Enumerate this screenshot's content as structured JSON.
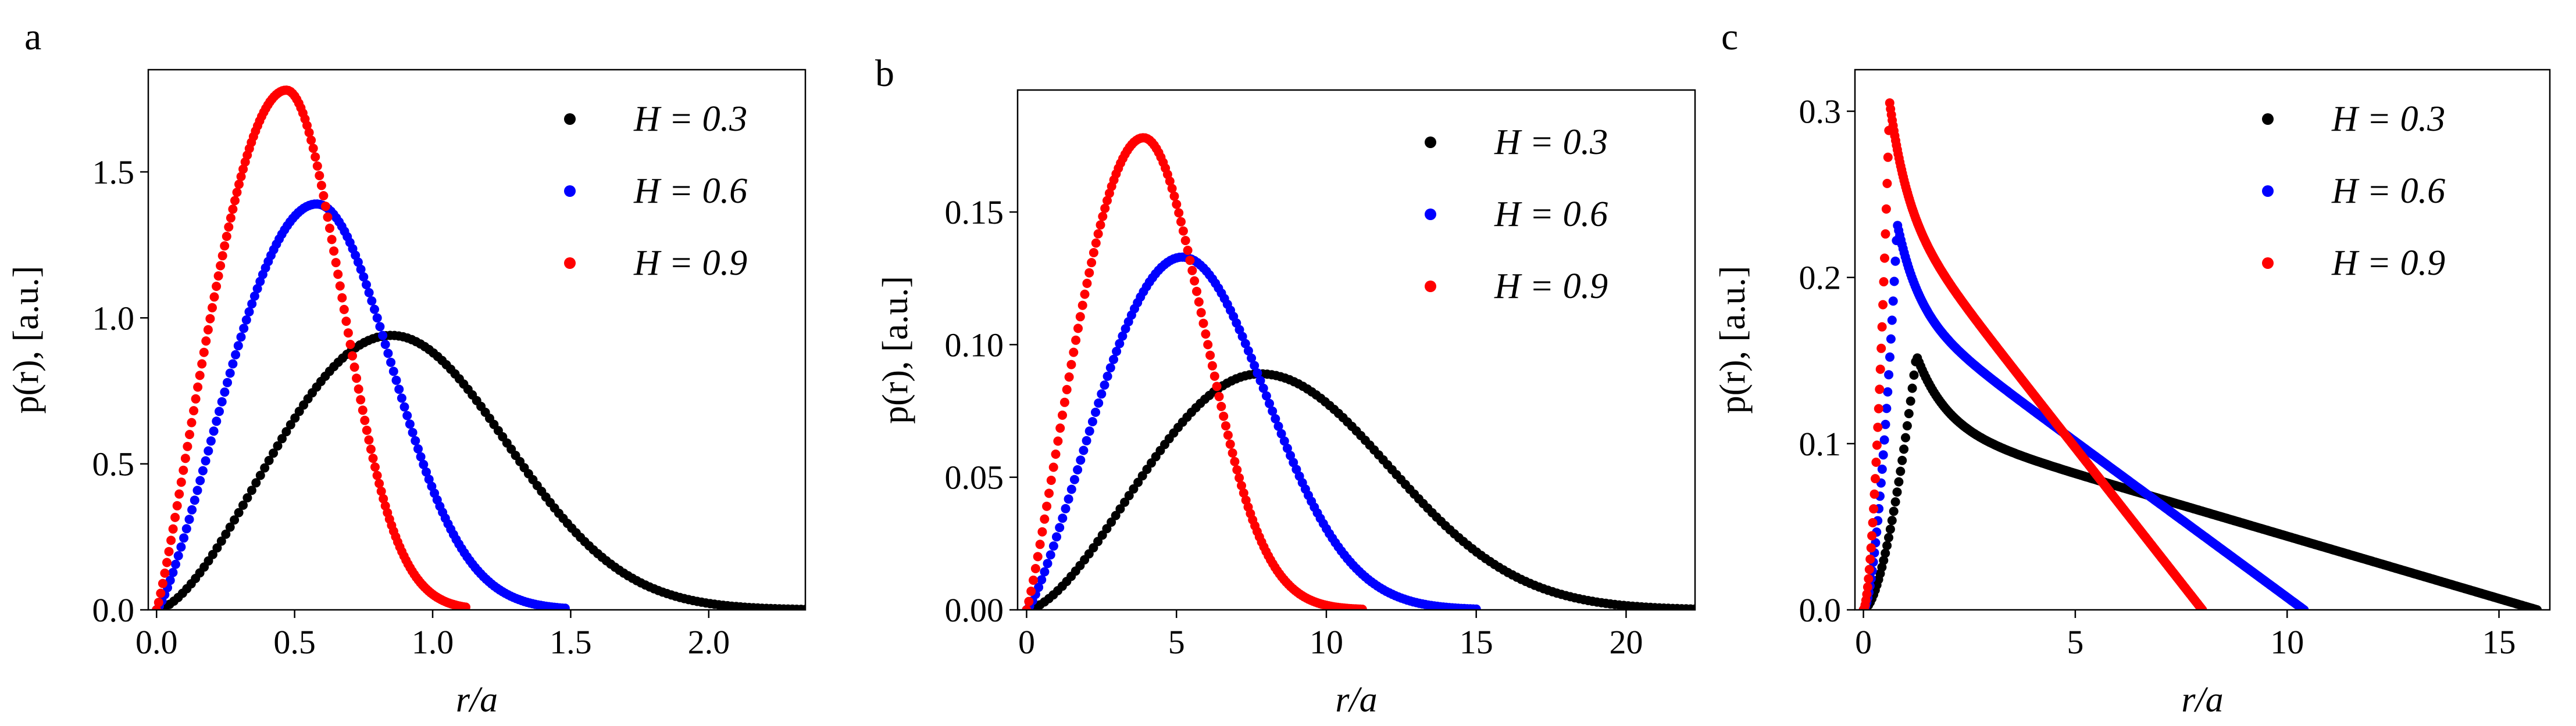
{
  "chart_data": [
    {
      "panel_label": "a",
      "type": "scatter",
      "xlabel": "r/a",
      "ylabel": "p(r), [a.u.]",
      "xlim": [
        -0.03,
        2.35
      ],
      "ylim": [
        0,
        1.85
      ],
      "xticks": [
        0.0,
        0.5,
        1.0,
        1.5,
        2.0
      ],
      "xtick_labels": [
        "0.0",
        "0.5",
        "1.0",
        "1.5",
        "2.0"
      ],
      "yticks": [
        0.0,
        0.5,
        1.0,
        1.5
      ],
      "ytick_labels": [
        "0.0",
        "0.5",
        "1.0",
        "1.5"
      ],
      "legend_position": "top-right",
      "series": [
        {
          "name": "H = 0.3",
          "color": "#000000",
          "shape": "bell",
          "peak_x": 0.85,
          "peak_y": 0.94,
          "x_max": 2.35,
          "tail_sigma": 0.42,
          "rise_power": 1.6,
          "n_points": 150
        },
        {
          "name": "H = 0.6",
          "color": "#0000ff",
          "shape": "bell",
          "peak_x": 0.58,
          "peak_y": 1.39,
          "x_max": 1.48,
          "tail_sigma": 0.27,
          "rise_power": 1.3,
          "n_points": 150
        },
        {
          "name": "H = 0.9",
          "color": "#ff0000",
          "shape": "bell",
          "peak_x": 0.47,
          "peak_y": 1.78,
          "x_max": 1.12,
          "tail_sigma": 0.2,
          "rise_power": 1.15,
          "n_points": 150
        }
      ]
    },
    {
      "panel_label": "b",
      "type": "scatter",
      "xlabel": "r/a",
      "ylabel": "p(r), [a.u.]",
      "xlim": [
        -0.3,
        22.3
      ],
      "ylim": [
        0,
        0.196
      ],
      "xticks": [
        0,
        5,
        10,
        15,
        20
      ],
      "xtick_labels": [
        "0",
        "5",
        "10",
        "15",
        "20"
      ],
      "yticks": [
        0.0,
        0.05,
        0.1,
        0.15
      ],
      "ytick_labels": [
        "0.00",
        "0.05",
        "0.10",
        "0.15"
      ],
      "legend_position": "top-right",
      "series": [
        {
          "name": "H = 0.3",
          "color": "#000000",
          "shape": "bell",
          "peak_x": 7.8,
          "peak_y": 0.089,
          "x_max": 22.3,
          "tail_sigma": 4.3,
          "rise_power": 1.6,
          "n_points": 150
        },
        {
          "name": "H = 0.6",
          "color": "#0000ff",
          "shape": "bell",
          "peak_x": 5.2,
          "peak_y": 0.133,
          "x_max": 15.0,
          "tail_sigma": 2.8,
          "rise_power": 1.3,
          "n_points": 150
        },
        {
          "name": "H = 0.9",
          "color": "#ff0000",
          "shape": "bell",
          "peak_x": 3.9,
          "peak_y": 0.178,
          "x_max": 11.2,
          "tail_sigma": 2.0,
          "rise_power": 1.15,
          "n_points": 150
        }
      ]
    },
    {
      "panel_label": "c",
      "type": "scatter",
      "xlabel": "r/a",
      "ylabel": "p(r), [a.u.]",
      "xlim": [
        -0.2,
        16.2
      ],
      "ylim": [
        0,
        0.325
      ],
      "xticks": [
        0,
        5,
        10,
        15
      ],
      "xtick_labels": [
        "0",
        "5",
        "10",
        "15"
      ],
      "yticks": [
        0.0,
        0.1,
        0.2,
        0.3
      ],
      "ytick_labels": [
        "0.0",
        "0.1",
        "0.2",
        "0.3"
      ],
      "legend_position": "top-right",
      "series": [
        {
          "name": "H = 0.3",
          "color": "#000000",
          "shape": "spike",
          "peak_x": 1.25,
          "peak_y": 0.153,
          "tail_start_y": 0.11,
          "x_end": 15.9,
          "n_points": 400
        },
        {
          "name": "H = 0.6",
          "color": "#0000ff",
          "shape": "spike",
          "peak_x": 0.8,
          "peak_y": 0.232,
          "tail_start_y": 0.18,
          "x_end": 10.4,
          "n_points": 400
        },
        {
          "name": "H = 0.9",
          "color": "#ff0000",
          "shape": "spike",
          "peak_x": 0.62,
          "peak_y": 0.305,
          "tail_start_y": 0.24,
          "x_end": 8.0,
          "n_points": 400
        }
      ]
    }
  ]
}
